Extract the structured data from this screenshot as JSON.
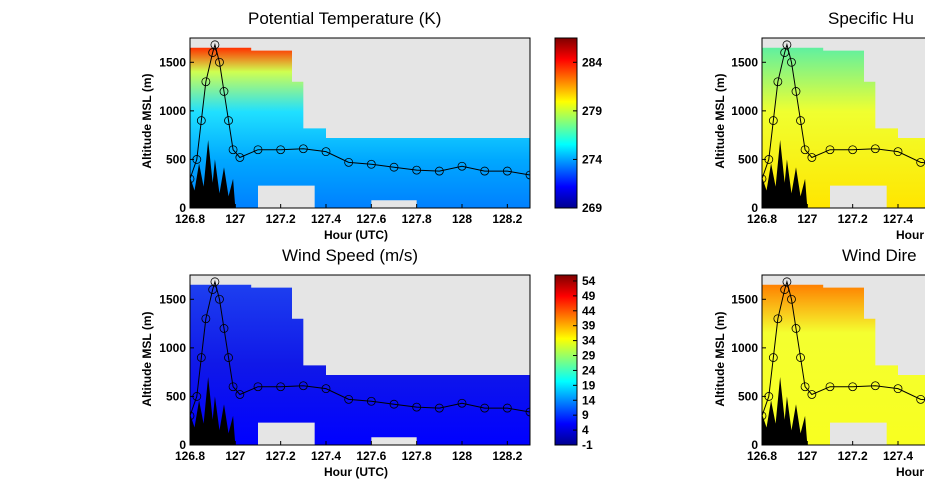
{
  "chart_data": [
    {
      "type": "heatmap",
      "title": "Potential Temperature (K)",
      "xlabel": "Hour (UTC)",
      "ylabel": "Altitude MSL (m)",
      "xlim": [
        126.8,
        128.3
      ],
      "ylim": [
        0,
        1750
      ],
      "x_ticks": [
        "126.8",
        "127",
        "127.2",
        "127.4",
        "127.6",
        "127.8",
        "128",
        "128.2"
      ],
      "y_ticks": [
        "0",
        "500",
        "1000",
        "1500"
      ],
      "colorbar_ticks": [
        "269",
        "274",
        "279",
        "284"
      ],
      "colorbar_range": [
        269,
        286.5
      ]
    },
    {
      "type": "heatmap",
      "title": "Wind Speed (m/s)",
      "xlabel": "Hour (UTC)",
      "ylabel": "Altitude MSL (m)",
      "xlim": [
        126.8,
        128.3
      ],
      "ylim": [
        0,
        1750
      ],
      "x_ticks": [
        "126.8",
        "127",
        "127.2",
        "127.4",
        "127.6",
        "127.8",
        "128",
        "128.2"
      ],
      "y_ticks": [
        "0",
        "500",
        "1000",
        "1500"
      ],
      "colorbar_ticks": [
        "-1",
        "4",
        "9",
        "14",
        "19",
        "24",
        "29",
        "34",
        "39",
        "44",
        "49",
        "54"
      ],
      "colorbar_range": [
        -1,
        56
      ]
    },
    {
      "type": "heatmap",
      "title": "Specific Hu",
      "xlabel": "Hour",
      "ylabel": "Altitude MSL (m)",
      "xlim": [
        126.8,
        128.3
      ],
      "ylim": [
        0,
        1750
      ],
      "x_ticks": [
        "126.8",
        "127",
        "127.2",
        "127.4"
      ],
      "y_ticks": [
        "0",
        "500",
        "1000",
        "1500"
      ]
    },
    {
      "type": "heatmap",
      "title": "Wind Dire",
      "xlabel": "Hour",
      "ylabel": "Altitude MSL (m)",
      "xlim": [
        126.8,
        128.3
      ],
      "ylim": [
        0,
        1750
      ],
      "x_ticks": [
        "126.8",
        "127",
        "127.2",
        "127.4"
      ],
      "y_ticks": [
        "0",
        "500",
        "1000",
        "1500"
      ]
    }
  ],
  "colormap": [
    "#00008f",
    "#0000ff",
    "#007fff",
    "#00ffff",
    "#7fff7f",
    "#ffff00",
    "#ff7f00",
    "#ff0000",
    "#7f0000"
  ],
  "colors": {
    "background_na": "#e5e5e5",
    "terrain": "#000000"
  }
}
